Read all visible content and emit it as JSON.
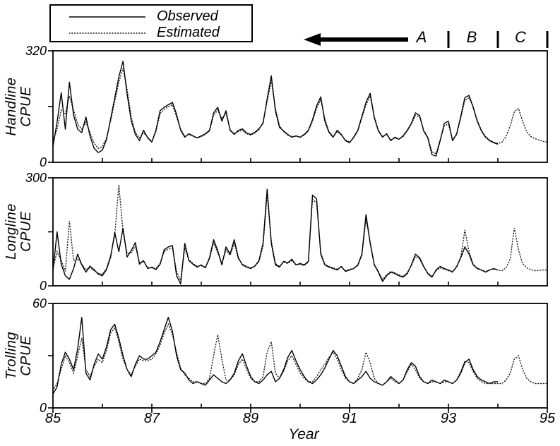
{
  "figure": {
    "legend": {
      "observed": "Observed",
      "estimated": "Estimated"
    },
    "period_labels": [
      "A",
      "B",
      "C"
    ],
    "xlabel": "Year",
    "x_tick_labels": [
      "85",
      "87",
      "89",
      "91",
      "93",
      "95"
    ]
  },
  "chart_data": {
    "type": "line",
    "title": "",
    "xlabel": "Year",
    "x_range": [
      85,
      95
    ],
    "x_step": "monthly",
    "grid": false,
    "legend_position": "top-left",
    "series_names": [
      "Observed",
      "Estimated"
    ],
    "annotations": {
      "arrow": "thick left-pointing arrow above top panel",
      "period_boundaries_years": [
        93,
        94,
        95
      ],
      "period_labels": [
        "A",
        "B",
        "C"
      ]
    },
    "panels": [
      {
        "ylabel": "Handline CPUE",
        "ylabel_lines": [
          "Handline",
          "CPUE"
        ],
        "ylim": [
          0,
          320
        ],
        "yticks": [
          0,
          160,
          320
        ],
        "ytick_labels": [
          "320",
          "0"
        ],
        "observed": [
          45,
          115,
          200,
          95,
          230,
          135,
          95,
          85,
          130,
          75,
          40,
          28,
          35,
          65,
          125,
          185,
          245,
          290,
          195,
          120,
          80,
          62,
          92,
          70,
          58,
          92,
          148,
          158,
          165,
          172,
          138,
          92,
          72,
          82,
          76,
          70,
          76,
          82,
          92,
          142,
          158,
          118,
          148,
          92,
          80,
          92,
          96,
          84,
          80,
          86,
          96,
          112,
          182,
          248,
          148,
          100,
          90,
          80,
          72,
          76,
          72,
          80,
          92,
          122,
          162,
          188,
          118,
          86,
          72,
          92,
          80,
          62,
          56,
          72,
          92,
          132,
          172,
          198,
          128,
          90,
          72,
          82,
          62,
          72,
          66,
          76,
          92,
          112,
          142,
          134,
          90,
          70,
          22,
          18,
          62,
          112,
          118,
          62,
          82,
          132,
          186,
          192,
          158,
          118,
          90,
          72,
          62,
          56,
          52
        ],
        "estimated": [
          60,
          95,
          150,
          140,
          190,
          150,
          110,
          95,
          115,
          85,
          55,
          40,
          45,
          70,
          120,
          175,
          230,
          270,
          210,
          130,
          85,
          70,
          85,
          72,
          60,
          88,
          140,
          152,
          160,
          165,
          130,
          95,
          75,
          80,
          75,
          70,
          74,
          80,
          90,
          135,
          150,
          125,
          140,
          95,
          82,
          88,
          92,
          82,
          78,
          84,
          94,
          115,
          175,
          235,
          155,
          105,
          88,
          78,
          74,
          75,
          72,
          78,
          90,
          118,
          155,
          180,
          125,
          88,
          74,
          88,
          78,
          64,
          58,
          70,
          90,
          128,
          165,
          190,
          132,
          92,
          74,
          80,
          64,
          70,
          66,
          74,
          90,
          110,
          135,
          130,
          92,
          72,
          30,
          25,
          65,
          105,
          110,
          65,
          80,
          128,
          178,
          185,
          160,
          120,
          92,
          74,
          64,
          58,
          54,
          58,
          75,
          105,
          145,
          155,
          118,
          88,
          74,
          68,
          64,
          60,
          58
        ]
      },
      {
        "ylabel": "Longline CPUE",
        "ylabel_lines": [
          "Longline",
          "CPUE"
        ],
        "ylim": [
          0,
          300
        ],
        "yticks": [
          0,
          150,
          300
        ],
        "ytick_labels": [
          "300",
          "0"
        ],
        "observed": [
          40,
          150,
          60,
          28,
          18,
          48,
          88,
          58,
          38,
          55,
          45,
          32,
          28,
          45,
          80,
          148,
          95,
          160,
          80,
          98,
          120,
          60,
          70,
          48,
          52,
          45,
          60,
          100,
          108,
          112,
          28,
          5,
          118,
          70,
          60,
          52,
          58,
          50,
          78,
          128,
          98,
          58,
          108,
          88,
          128,
          78,
          58,
          52,
          48,
          55,
          70,
          118,
          268,
          118,
          58,
          52,
          68,
          64,
          74,
          58,
          62,
          58,
          68,
          252,
          242,
          88,
          58,
          52,
          48,
          44,
          54,
          40,
          44,
          48,
          58,
          88,
          198,
          118,
          58,
          38,
          12,
          28,
          38,
          34,
          28,
          24,
          34,
          58,
          88,
          78,
          54,
          34,
          24,
          44,
          54,
          48,
          44,
          38,
          54,
          78,
          108,
          88,
          58,
          48,
          44,
          38,
          44,
          48,
          44
        ],
        "estimated": [
          50,
          95,
          70,
          40,
          180,
          70,
          75,
          60,
          45,
          50,
          42,
          35,
          32,
          48,
          85,
          140,
          280,
          150,
          90,
          92,
          110,
          65,
          68,
          50,
          50,
          48,
          62,
          95,
          102,
          105,
          40,
          15,
          105,
          72,
          62,
          54,
          56,
          52,
          75,
          120,
          92,
          62,
          100,
          85,
          118,
          75,
          60,
          54,
          50,
          54,
          68,
          110,
          255,
          125,
          62,
          54,
          66,
          62,
          70,
          58,
          60,
          56,
          66,
          240,
          230,
          92,
          60,
          54,
          50,
          46,
          52,
          42,
          46,
          48,
          56,
          85,
          185,
          122,
          60,
          40,
          18,
          30,
          40,
          36,
          30,
          26,
          36,
          56,
          82,
          75,
          52,
          36,
          26,
          42,
          50,
          46,
          42,
          40,
          52,
          80,
          155,
          95,
          60,
          50,
          44,
          40,
          44,
          46,
          44,
          42,
          50,
          75,
          160,
          100,
          62,
          50,
          45,
          42,
          43,
          44,
          44
        ]
      },
      {
        "ylabel": "Trolling CPUE",
        "ylabel_lines": [
          "Trolling",
          "CPUE"
        ],
        "ylim": [
          0,
          60
        ],
        "yticks": [
          0,
          30,
          60
        ],
        "ytick_labels": [
          "60",
          "0"
        ],
        "observed": [
          8,
          12,
          25,
          32,
          28,
          22,
          34,
          52,
          20,
          16,
          25,
          31,
          28,
          35,
          45,
          48,
          40,
          30,
          22,
          18,
          25,
          30,
          28,
          28,
          30,
          32,
          38,
          45,
          52,
          44,
          30,
          22,
          20,
          16,
          14,
          15,
          14,
          13,
          16,
          19,
          17,
          15,
          14,
          16,
          20,
          27,
          31,
          24,
          18,
          15,
          14,
          16,
          19,
          21,
          15,
          17,
          22,
          29,
          33,
          27,
          22,
          18,
          15,
          14,
          16,
          19,
          23,
          28,
          33,
          30,
          24,
          18,
          15,
          14,
          16,
          18,
          21,
          17,
          15,
          14,
          13,
          15,
          18,
          16,
          14,
          16,
          22,
          26,
          24,
          18,
          15,
          14,
          16,
          15,
          14,
          16,
          15,
          14,
          16,
          20,
          26,
          28,
          22,
          18,
          16,
          15,
          14,
          15,
          15
        ],
        "estimated": [
          10,
          14,
          22,
          30,
          26,
          20,
          30,
          40,
          22,
          18,
          24,
          28,
          26,
          33,
          43,
          46,
          38,
          28,
          22,
          19,
          24,
          28,
          27,
          27,
          28,
          31,
          36,
          43,
          48,
          42,
          32,
          23,
          19,
          17,
          15,
          15,
          14,
          14,
          17,
          30,
          42,
          28,
          16,
          16,
          19,
          25,
          28,
          22,
          17,
          15,
          15,
          18,
          32,
          38,
          20,
          17,
          21,
          27,
          30,
          25,
          20,
          17,
          15,
          15,
          18,
          22,
          25,
          29,
          32,
          28,
          22,
          17,
          15,
          14,
          17,
          22,
          32,
          26,
          17,
          14,
          13,
          15,
          17,
          15,
          14,
          16,
          21,
          25,
          22,
          17,
          15,
          14,
          15,
          15,
          14,
          15,
          15,
          14,
          16,
          21,
          27,
          26,
          21,
          17,
          15,
          14,
          14,
          14,
          14,
          14,
          16,
          20,
          28,
          30,
          22,
          17,
          15,
          14,
          14,
          14,
          14
        ]
      }
    ]
  }
}
